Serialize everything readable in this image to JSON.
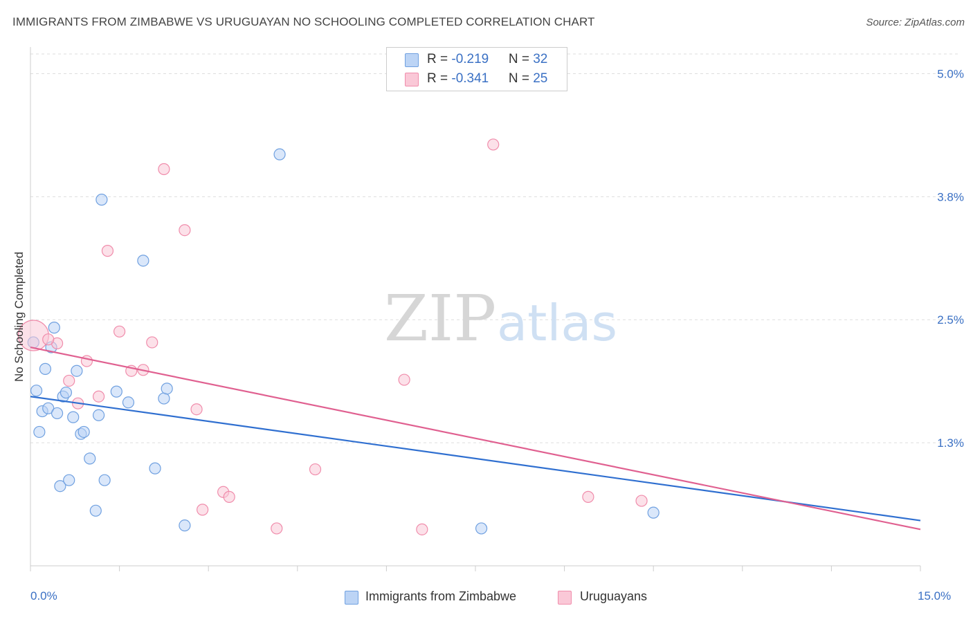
{
  "header": {
    "title": "IMMIGRANTS FROM ZIMBABWE VS URUGUAYAN NO SCHOOLING COMPLETED CORRELATION CHART",
    "source": "Source: ZipAtlas.com"
  },
  "watermark": {
    "zip": "ZIP",
    "atlas": "atlas"
  },
  "legend": {
    "rows": [
      {
        "r_label": "R = ",
        "r_value": "-0.219",
        "n_label": "N = ",
        "n_value": "32"
      },
      {
        "r_label": "R = ",
        "r_value": "-0.341",
        "n_label": "N = ",
        "n_value": "25"
      }
    ]
  },
  "chart_data": {
    "type": "scatter",
    "title": "IMMIGRANTS FROM ZIMBABWE VS URUGUAYAN NO SCHOOLING COMPLETED CORRELATION CHART",
    "ylabel": "No Schooling Completed",
    "xlabel": "",
    "xlim": [
      0,
      15
    ],
    "ylim": [
      0,
      5.2
    ],
    "x_tick_labels": [
      "0.0%",
      "15.0%"
    ],
    "y_tick_labels": [
      "5.0%",
      "3.8%",
      "2.5%",
      "1.3%"
    ],
    "y_tick_values": [
      5.0,
      3.75,
      2.5,
      1.25
    ],
    "grid": "horizontal dashed",
    "legend_position": "bottom",
    "colors": {
      "zimbabwe": "#6fa0e0",
      "uruguay": "#f08cab",
      "zimbabwe_line": "#2f6fd0",
      "uruguay_line": "#e06090"
    },
    "series": [
      {
        "name": "Immigrants from Zimbabwe",
        "trend": [
          [
            0,
            1.72
          ],
          [
            15,
            0.46
          ]
        ],
        "points": [
          [
            0.05,
            2.27
          ],
          [
            0.1,
            1.78
          ],
          [
            0.15,
            1.36
          ],
          [
            0.2,
            1.57
          ],
          [
            0.25,
            2.0
          ],
          [
            0.3,
            1.6
          ],
          [
            0.35,
            2.22
          ],
          [
            0.4,
            2.42
          ],
          [
            0.45,
            1.55
          ],
          [
            0.5,
            0.81
          ],
          [
            0.55,
            1.72
          ],
          [
            0.6,
            1.76
          ],
          [
            0.65,
            0.87
          ],
          [
            0.72,
            1.51
          ],
          [
            0.78,
            1.98
          ],
          [
            0.85,
            1.34
          ],
          [
            0.9,
            1.36
          ],
          [
            1.0,
            1.09
          ],
          [
            1.1,
            0.56
          ],
          [
            1.2,
            3.72
          ],
          [
            1.25,
            0.87
          ],
          [
            1.45,
            1.77
          ],
          [
            1.65,
            1.66
          ],
          [
            1.9,
            3.1
          ],
          [
            2.1,
            0.99
          ],
          [
            2.25,
            1.7
          ],
          [
            2.3,
            1.8
          ],
          [
            2.6,
            0.41
          ],
          [
            4.2,
            4.18
          ],
          [
            7.6,
            0.38
          ],
          [
            10.5,
            0.54
          ],
          [
            1.15,
            1.53
          ]
        ]
      },
      {
        "name": "Uruguayans",
        "trend": [
          [
            0,
            2.22
          ],
          [
            15,
            0.37
          ]
        ],
        "points": [
          [
            0.05,
            2.34
          ],
          [
            0.45,
            2.26
          ],
          [
            0.65,
            1.88
          ],
          [
            0.8,
            1.65
          ],
          [
            0.95,
            2.08
          ],
          [
            1.15,
            1.72
          ],
          [
            1.3,
            3.2
          ],
          [
            1.5,
            2.38
          ],
          [
            1.7,
            1.98
          ],
          [
            1.9,
            1.99
          ],
          [
            2.05,
            2.27
          ],
          [
            2.25,
            4.03
          ],
          [
            2.6,
            3.41
          ],
          [
            2.8,
            1.59
          ],
          [
            2.9,
            0.57
          ],
          [
            3.25,
            0.75
          ],
          [
            3.35,
            0.7
          ],
          [
            4.15,
            0.38
          ],
          [
            4.8,
            0.98
          ],
          [
            6.3,
            1.89
          ],
          [
            6.6,
            0.37
          ],
          [
            7.8,
            4.28
          ],
          [
            9.4,
            0.7
          ],
          [
            10.3,
            0.66
          ],
          [
            0.3,
            2.3
          ]
        ]
      }
    ]
  },
  "bottom_legend": {
    "items": [
      {
        "label": "Immigrants from Zimbabwe"
      },
      {
        "label": "Uruguayans"
      }
    ]
  }
}
